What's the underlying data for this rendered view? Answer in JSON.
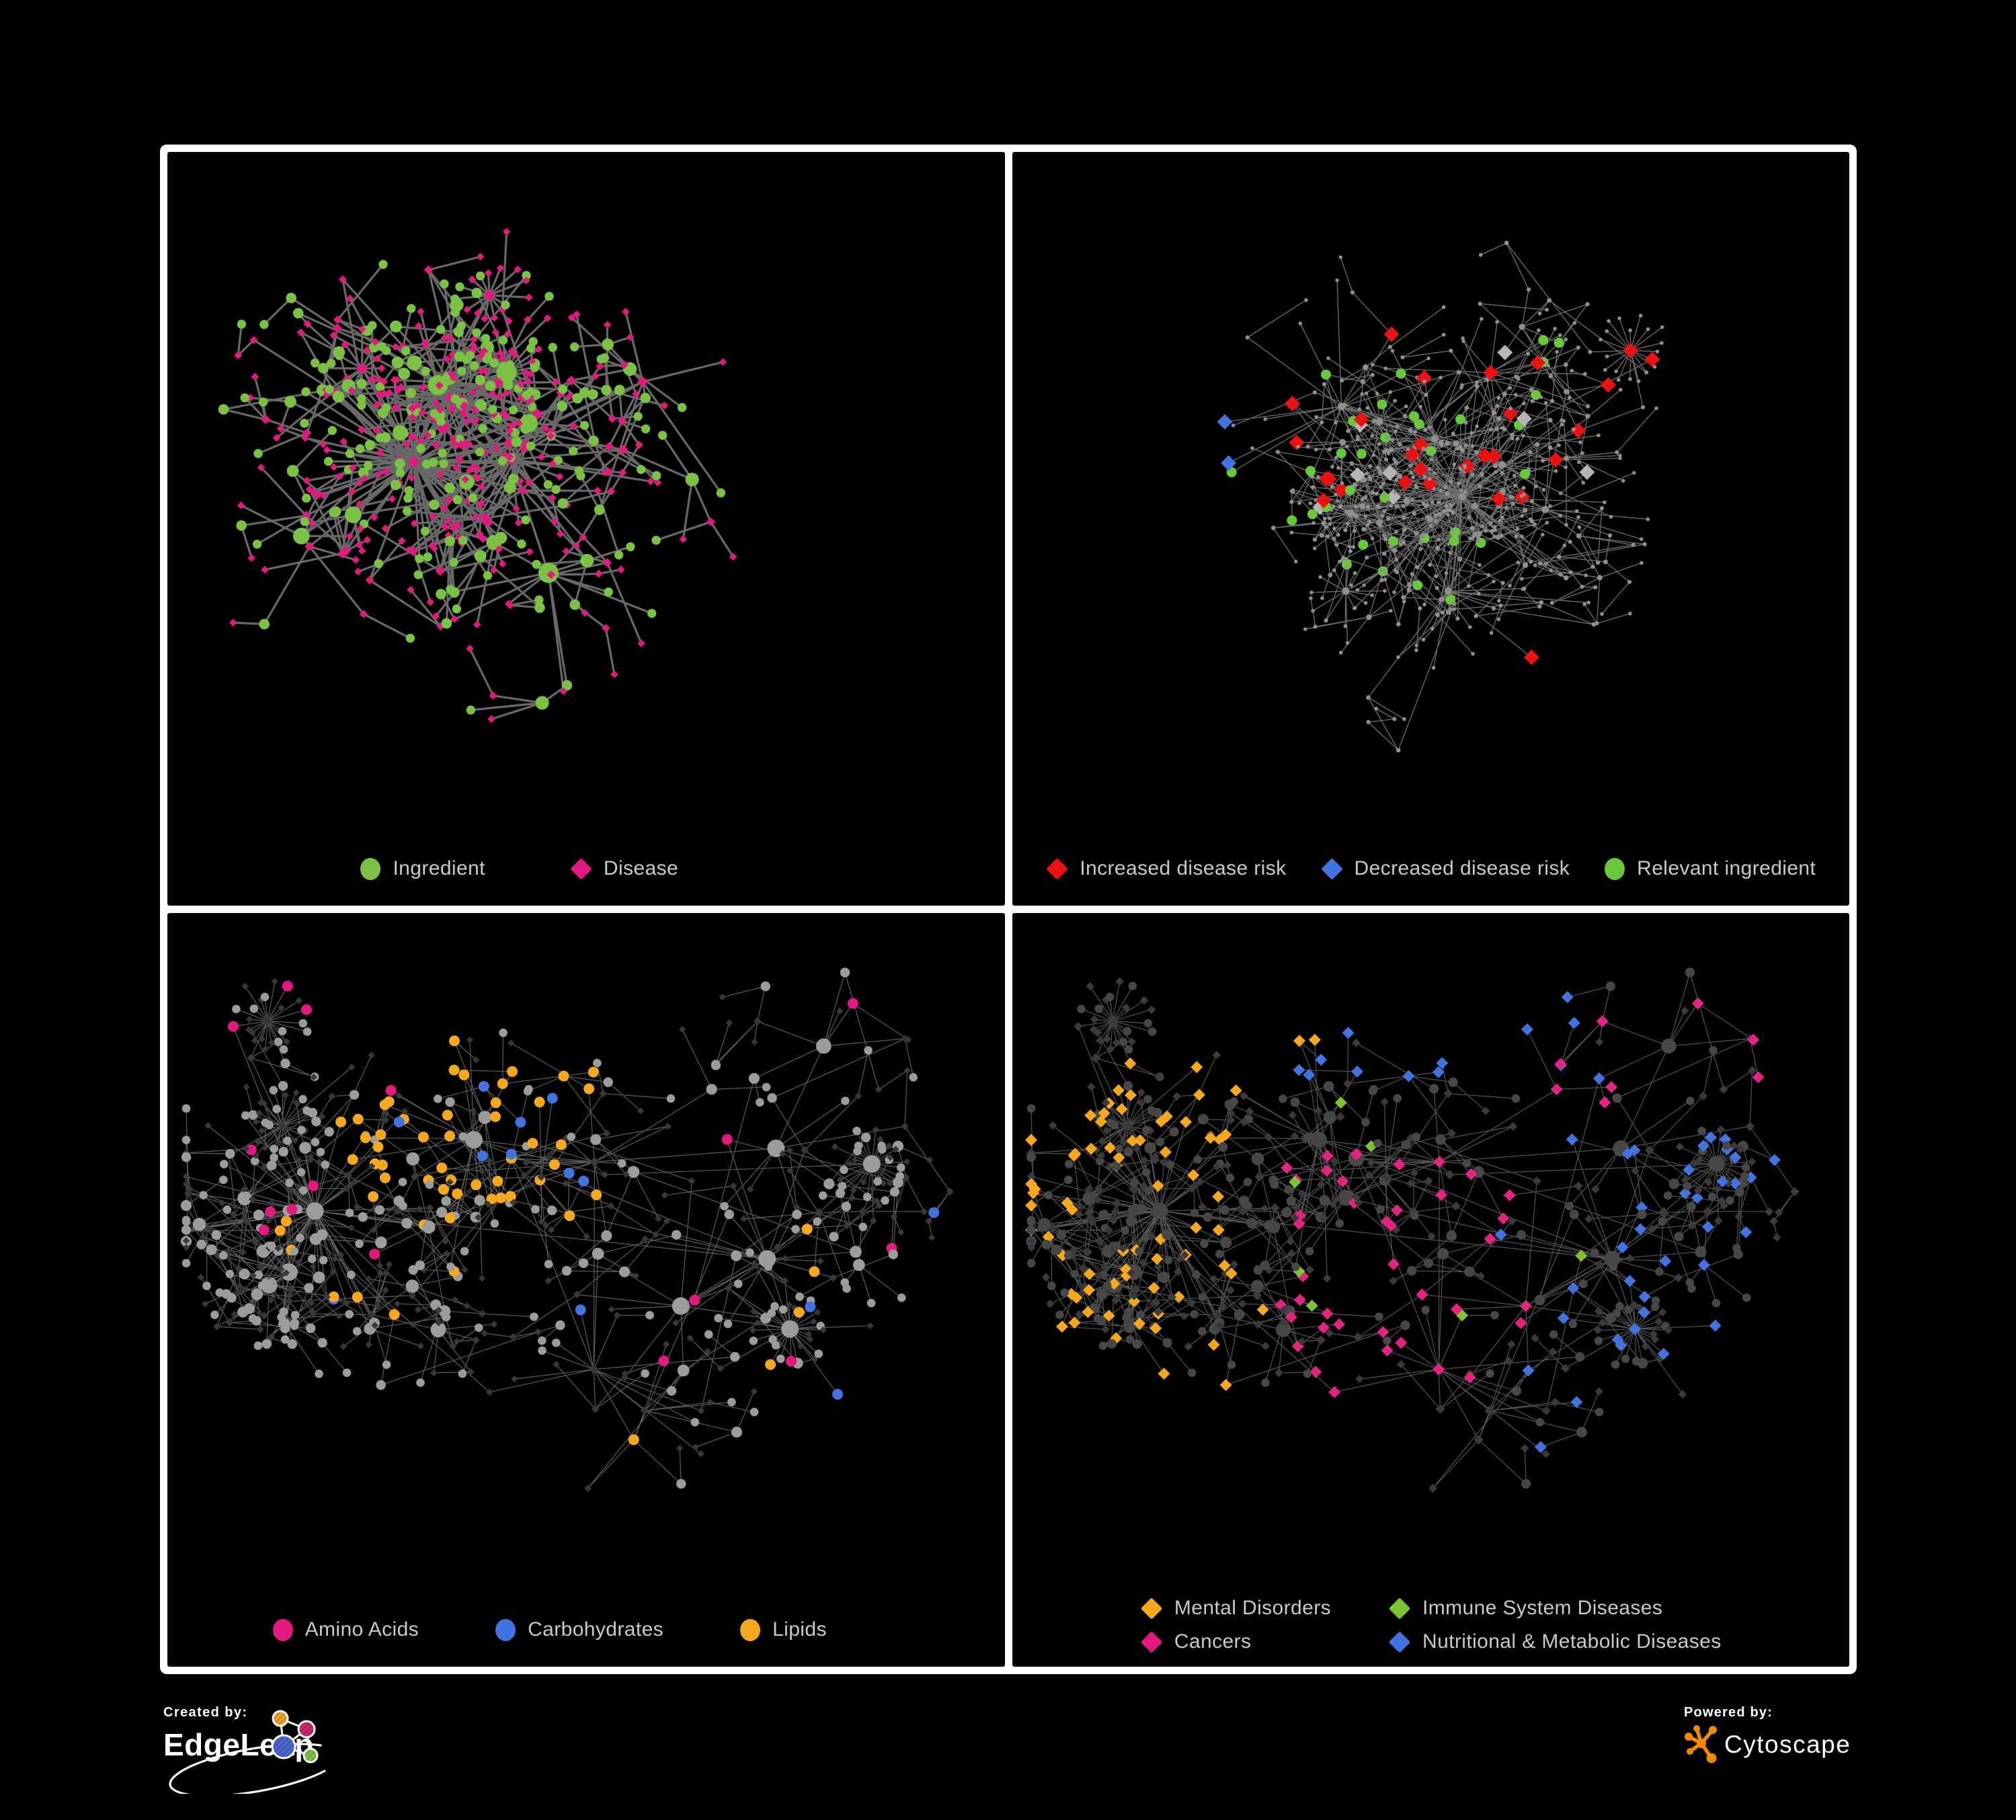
{
  "colors": {
    "background": "#000000",
    "panel_border": "#ffffff",
    "legend_text": "#c9c9c9",
    "edgeleap_orange": "#f0a22f",
    "edgeleap_pink": "#cb2567",
    "edgeleap_blue": "#4a66c9",
    "edgeleap_green": "#7cc242",
    "cytoscape_orange": "#ef8a00"
  },
  "branding": {
    "created_by_label": "Created by:",
    "created_by_name": "EdgeLeap",
    "powered_by_label": "Powered by:",
    "powered_by_name": "Cytoscape"
  },
  "panels": [
    {
      "name": "ingredient-disease-network",
      "legend": [
        {
          "label": "Ingredient",
          "shape": "circle",
          "color": "#7bc143"
        },
        {
          "label": "Disease",
          "shape": "diamond",
          "color": "#e4197f"
        }
      ],
      "network": {
        "type": "network-graph",
        "seed": 11,
        "hseed": 1,
        "n": 470,
        "hubs": 8,
        "bias": 2.5,
        "step": 150,
        "extra": 30,
        "fans": 3,
        "edge": {
          "color": "#6e6e6e",
          "width": 3.2,
          "opacity": 0.95
        },
        "classes": [
          {
            "shape": "circle",
            "color": "#7bc143",
            "prob": 0.38,
            "rbase": 5.5,
            "rdeg": 1.15,
            "rmax": 15
          },
          {
            "shape": "diamond",
            "color": "#e4197f",
            "prob": 0.62,
            "rbase": 5.5,
            "rdeg": 0.32,
            "rmax": 9
          }
        ]
      }
    },
    {
      "name": "disease-risk-network",
      "legend": [
        {
          "label": "Increased disease risk",
          "shape": "diamond",
          "color": "#ed1111"
        },
        {
          "label": "Decreased disease risk",
          "shape": "diamond",
          "color": "#4273e0"
        },
        {
          "label": "Relevant ingredient",
          "shape": "circle",
          "color": "#68c83c"
        }
      ],
      "network": {
        "type": "network-graph",
        "seed": 23,
        "hseed": 77,
        "n": 580,
        "hubs": 9,
        "bias": 2.35,
        "step": 142,
        "extra": 46,
        "fans": 4,
        "edge": {
          "color": "#8a8a8a",
          "width": 1.3,
          "opacity": 0.8
        },
        "classes": [
          {
            "shape": "circle",
            "color": "#8f8f8f",
            "prob": 1,
            "rbase": 2.5,
            "rdeg": 0.3,
            "rmax": 5.5
          }
        ],
        "highlights": [
          {
            "shape": "diamond",
            "color": "#ed1111",
            "size": 11.5,
            "count": 24,
            "region": [
              0.3,
              0.68,
              0.2,
              0.52
            ]
          },
          {
            "shape": "diamond",
            "color": "#ed1111",
            "size": 11.5,
            "count": 3,
            "region": [
              0.7,
              0.85,
              0.28,
              0.48
            ]
          },
          {
            "shape": "diamond",
            "color": "#ed1111",
            "size": 11.5,
            "count": 3,
            "region": [
              0.58,
              0.78,
              0.68,
              0.85
            ]
          },
          {
            "shape": "diamond",
            "color": "#4273e0",
            "size": 11.5,
            "count": 7,
            "region": [
              0.08,
              0.26,
              0.28,
              0.52
            ]
          },
          {
            "shape": "diamond",
            "color": "#4273e0",
            "size": 11,
            "count": 2,
            "region": [
              0.82,
              0.95,
              0.2,
              0.3
            ]
          },
          {
            "shape": "diamond",
            "color": "#b5b5b5",
            "size": 11.5,
            "count": 8,
            "region": [
              0.08,
              0.72,
              0.24,
              0.56
            ]
          },
          {
            "shape": "circle",
            "color": "#68c83c",
            "size": 7.5,
            "count": 30,
            "region": [
              0.06,
              0.66,
              0.2,
              0.58
            ]
          },
          {
            "shape": "circle",
            "color": "#68c83c",
            "size": 7.5,
            "count": 4,
            "region": [
              0.3,
              0.55,
              0.6,
              0.78
            ]
          }
        ]
      }
    },
    {
      "name": "macronutrient-network",
      "legend": [
        {
          "label": "Amino Acids",
          "shape": "circle",
          "color": "#e4197f"
        },
        {
          "label": "Carbohydrates",
          "shape": "circle",
          "color": "#4273e0"
        },
        {
          "label": "Lipids",
          "shape": "circle",
          "color": "#f5a81e"
        }
      ],
      "network": {
        "type": "network-graph",
        "seed": 37,
        "hseed": 101,
        "n": 560,
        "hubs": 9,
        "bias": 2.35,
        "step": 142,
        "extra": 70,
        "fans": 4,
        "edge": {
          "color": "#9a9a9a",
          "width": 1.2,
          "opacity": 0.6
        },
        "classes": [
          {
            "shape": "diamond",
            "color": "#383838",
            "prob": 0.55,
            "rbase": 5,
            "rdeg": 0.22,
            "rmax": 7.5
          },
          {
            "shape": "circle",
            "color": "#9c9c9c",
            "prob": 0.45,
            "rbase": 5.5,
            "rdeg": 0.85,
            "rmax": 13
          }
        ],
        "highlights": [
          {
            "shape": "circle",
            "color": "#f5a81e",
            "size": 8,
            "count": 42,
            "region": [
              0.2,
              0.52,
              0.1,
              0.42
            ]
          },
          {
            "shape": "circle",
            "color": "#f5a81e",
            "size": 8,
            "count": 16,
            "region": [
              0.08,
              0.92,
              0.42,
              0.88
            ]
          },
          {
            "shape": "circle",
            "color": "#4273e0",
            "size": 8,
            "count": 8,
            "region": [
              0.22,
              0.52,
              0.12,
              0.4
            ]
          },
          {
            "shape": "circle",
            "color": "#4273e0",
            "size": 8,
            "count": 5,
            "region": [
              0.08,
              0.92,
              0.4,
              0.88
            ]
          },
          {
            "shape": "circle",
            "color": "#e4197f",
            "size": 8,
            "count": 16,
            "region": [
              0.04,
              0.96,
              0.08,
              0.92
            ]
          }
        ]
      }
    },
    {
      "name": "disease-category-network",
      "legend": [
        {
          "label": "Mental Disorders",
          "shape": "diamond",
          "color": "#f5a81e"
        },
        {
          "label": "Immune System Diseases",
          "shape": "diamond",
          "color": "#7cc433"
        },
        {
          "label": "Cancers",
          "shape": "diamond",
          "color": "#e4197f"
        },
        {
          "label": "Nutritional & Metabolic Diseases",
          "shape": "diamond",
          "color": "#4273e0"
        }
      ],
      "network": {
        "type": "network-graph",
        "seed": 37,
        "hseed": 202,
        "n": 560,
        "hubs": 9,
        "bias": 2.35,
        "step": 142,
        "extra": 70,
        "fans": 4,
        "edge": {
          "color": "#8a8a8a",
          "width": 1.2,
          "opacity": 0.6
        },
        "classes": [
          {
            "shape": "diamond",
            "color": "#3a3a3a",
            "prob": 0.55,
            "rbase": 6,
            "rdeg": 0.3,
            "rmax": 9
          },
          {
            "shape": "circle",
            "color": "#474747",
            "prob": 0.45,
            "rbase": 5.5,
            "rdeg": 0.8,
            "rmax": 12
          }
        ],
        "highlights": [
          {
            "shape": "diamond",
            "color": "#f5a81e",
            "size": 9,
            "count": 70,
            "region": [
              0.02,
              0.3,
              0.22,
              0.72
            ]
          },
          {
            "shape": "diamond",
            "color": "#f5a81e",
            "size": 9,
            "count": 8,
            "region": [
              0.3,
              0.6,
              0.02,
              0.2
            ]
          },
          {
            "shape": "diamond",
            "color": "#e42482",
            "size": 9,
            "count": 40,
            "region": [
              0.32,
              0.62,
              0.35,
              0.72
            ]
          },
          {
            "shape": "diamond",
            "color": "#e42482",
            "size": 9,
            "count": 8,
            "region": [
              0.62,
              0.95,
              0.08,
              0.3
            ]
          },
          {
            "shape": "diamond",
            "color": "#4273e0",
            "size": 9,
            "count": 36,
            "region": [
              0.58,
              0.98,
              0.3,
              0.8
            ]
          },
          {
            "shape": "diamond",
            "color": "#4273e0",
            "size": 9,
            "count": 14,
            "region": [
              0.28,
              0.72,
              0.02,
              0.25
            ]
          },
          {
            "shape": "diamond",
            "color": "#4273e0",
            "size": 9,
            "count": 6,
            "region": [
              0.04,
              0.3,
              0.72,
              0.95
            ]
          },
          {
            "shape": "diamond",
            "color": "#7cc433",
            "size": 9,
            "count": 7,
            "region": [
              0.3,
              0.7,
              0.2,
              0.6
            ]
          }
        ]
      }
    }
  ]
}
